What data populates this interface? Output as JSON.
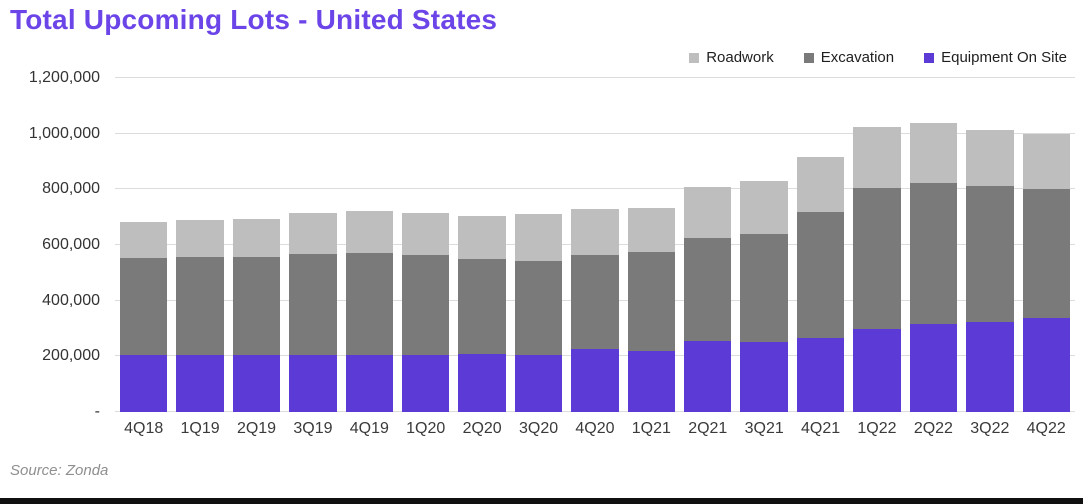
{
  "header": {
    "title": "Total Upcoming Lots - United States"
  },
  "footer": {
    "source": "Source: Zonda"
  },
  "colors": {
    "title": "#6c45e8",
    "roadwork": "#bebebe",
    "excavation": "#7a7a7a",
    "equipment_on_site": "#5b3ad6",
    "gridline": "#dcdcdc",
    "axis_text": "#3a3a3a",
    "legend_text": "#1f1f1f",
    "source_text": "#8f8f8f",
    "bottom_strip": "#101010",
    "background": "#ffffff"
  },
  "chart_data": {
    "type": "bar",
    "stacked": true,
    "title": "Total Upcoming Lots - United States",
    "xlabel": "",
    "ylabel": "",
    "ylim": [
      0,
      1200000
    ],
    "grid": true,
    "legend_position": "top-right",
    "legend_order": [
      "Roadwork",
      "Excavation",
      "Equipment On Site"
    ],
    "categories": [
      "4Q18",
      "1Q19",
      "2Q19",
      "3Q19",
      "4Q19",
      "1Q20",
      "2Q20",
      "3Q20",
      "4Q20",
      "1Q21",
      "2Q21",
      "3Q21",
      "4Q21",
      "1Q22",
      "2Q22",
      "3Q22",
      "4Q22"
    ],
    "series": [
      {
        "name": "Equipment On Site",
        "color": "#5b3ad6",
        "values": [
          205000,
          206000,
          206000,
          204000,
          206000,
          205000,
          210000,
          205000,
          228000,
          220000,
          255000,
          250000,
          267000,
          300000,
          315000,
          322000,
          338000
        ]
      },
      {
        "name": "Excavation",
        "color": "#7a7a7a",
        "values": [
          350000,
          350000,
          350000,
          362000,
          366000,
          360000,
          340000,
          337000,
          336000,
          356000,
          372000,
          390000,
          451000,
          506000,
          507000,
          489000,
          462000
        ]
      },
      {
        "name": "Roadwork",
        "color": "#bebebe",
        "values": [
          127000,
          134000,
          137000,
          148000,
          152000,
          150000,
          155000,
          169000,
          164000,
          158000,
          180000,
          191000,
          199000,
          217000,
          215000,
          201000,
          200000
        ]
      }
    ],
    "totals": [
      682000,
      690000,
      693000,
      714000,
      724000,
      715000,
      705000,
      711000,
      728000,
      734000,
      807000,
      831000,
      917000,
      1023000,
      1037000,
      1012000,
      1000000
    ],
    "y_ticks": [
      {
        "value": 0,
        "label": "-"
      },
      {
        "value": 200000,
        "label": "200,000"
      },
      {
        "value": 400000,
        "label": "400,000"
      },
      {
        "value": 600000,
        "label": "600,000"
      },
      {
        "value": 800000,
        "label": "800,000"
      },
      {
        "value": 1000000,
        "label": "1,000,000"
      },
      {
        "value": 1200000,
        "label": "1,200,000"
      }
    ],
    "source": "Source: Zonda"
  }
}
